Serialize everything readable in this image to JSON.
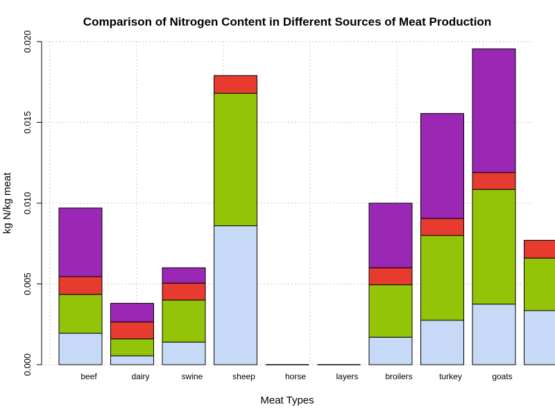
{
  "chart_data": {
    "type": "bar",
    "stacked": true,
    "title": "Comparison of Nitrogen Content in Different Sources of Meat Production",
    "xlabel": "Meat Types",
    "ylabel": "kg N/kg meat",
    "ylim": [
      0,
      0.02
    ],
    "yticks": [
      "0.000",
      "0.005",
      "0.010",
      "0.015",
      "0.020"
    ],
    "ytick_values": [
      0,
      0.005,
      0.01,
      0.015,
      0.02
    ],
    "grid": true,
    "legend": "none",
    "categories": [
      "beef",
      "dairy",
      "swine",
      "sheep",
      "horse",
      "layers",
      "broilers",
      "turkey",
      "goats",
      ""
    ],
    "series": [
      {
        "color": "#c6d9f7",
        "values": [
          0.00195,
          0.00055,
          0.0014,
          0.0086,
          0.0,
          0.0,
          0.0017,
          0.00275,
          0.00375,
          0.00335
        ]
      },
      {
        "color": "#94c408",
        "values": [
          0.0024,
          0.00105,
          0.0026,
          0.0082,
          0.0,
          0.0,
          0.00325,
          0.00525,
          0.0071,
          0.00325
        ]
      },
      {
        "color": "#e63b2e",
        "values": [
          0.0011,
          0.00105,
          0.00105,
          0.0011,
          0.0,
          0.0,
          0.00105,
          0.00105,
          0.00105,
          0.0011
        ]
      },
      {
        "color": "#9b27b5",
        "values": [
          0.00425,
          0.00115,
          0.00095,
          0.0,
          0.0,
          0.0,
          0.004,
          0.0065,
          0.00765,
          0.0
        ]
      }
    ]
  }
}
